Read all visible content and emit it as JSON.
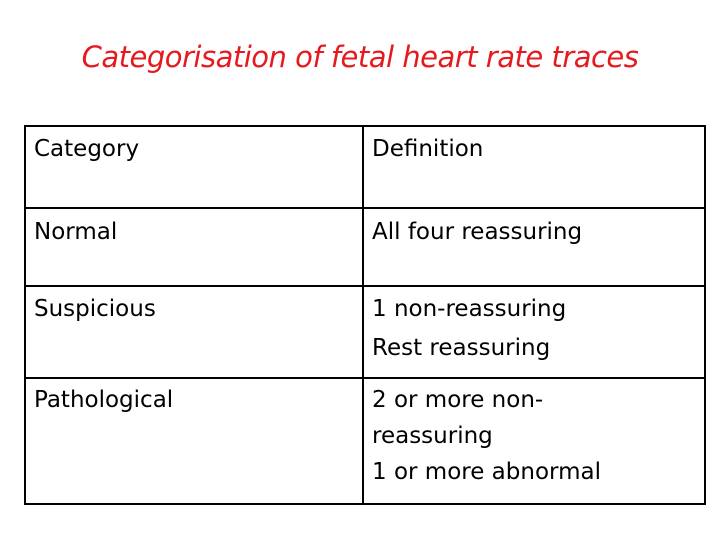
{
  "title": "Categorisation of fetal heart rate traces",
  "table": {
    "headers": [
      "Category",
      "Definition"
    ],
    "rows": [
      {
        "category": "Normal",
        "definition": [
          "All four reassuring"
        ]
      },
      {
        "category": "Suspicious",
        "definition": [
          "1 non-reassuring",
          "Rest reassuring"
        ]
      },
      {
        "category": "Pathological",
        "definition": [
          "2 or more non-",
          "reassuring",
          "1 or more abnormal"
        ]
      }
    ]
  },
  "colors": {
    "title": "#e6191e",
    "text": "#000000",
    "border": "#000000",
    "background": "#ffffff"
  }
}
